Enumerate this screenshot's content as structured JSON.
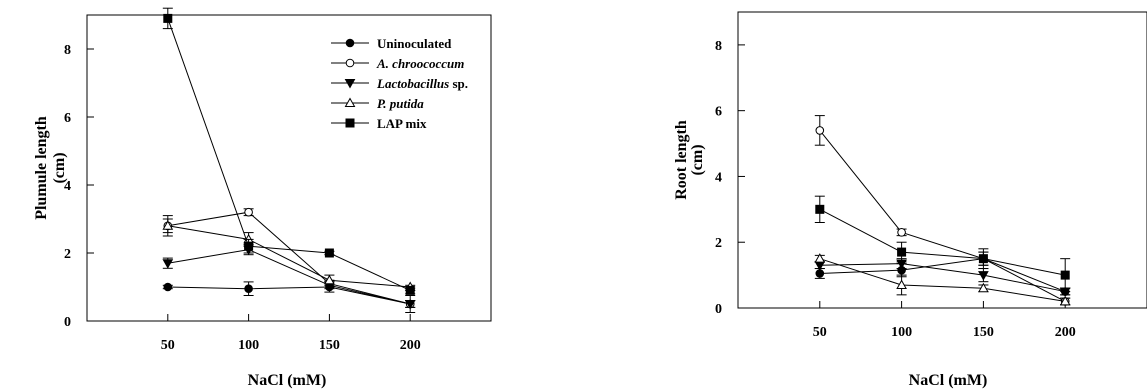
{
  "chart_data": [
    {
      "type": "line",
      "title": "",
      "xlabel": "NaCl (mM)",
      "ylabel": "Plumule length",
      "ylabel_unit": "(cm)",
      "x": [
        50,
        100,
        150,
        200
      ],
      "xlim": [
        0,
        250
      ],
      "ylim": [
        0,
        9
      ],
      "x_ticks": [
        50,
        100,
        150,
        200
      ],
      "y_ticks": [
        0,
        2,
        4,
        6,
        8
      ],
      "grid": false,
      "legend_position": "top-right",
      "series": [
        {
          "name": "Uninoculated",
          "legend_parts": [
            {
              "text": "Uninoculated",
              "italic": false
            }
          ],
          "marker": "filled-circle",
          "values": [
            1.0,
            0.95,
            1.0,
            0.5
          ],
          "errors": [
            0.05,
            0.2,
            0.15,
            0.25
          ]
        },
        {
          "name": "A. chroococcum",
          "legend_parts": [
            {
              "text": "A. chroococcum",
              "italic": true
            }
          ],
          "marker": "open-circle",
          "values": [
            2.8,
            3.2,
            1.1,
            0.5
          ],
          "errors": [
            0.2,
            0.1,
            0.1,
            0.1
          ]
        },
        {
          "name": "Lactobacillus sp.",
          "legend_parts": [
            {
              "text": "Lactobacillus",
              "italic": true
            },
            {
              "text": " sp.",
              "italic": false
            }
          ],
          "marker": "filled-triangle-down",
          "values": [
            1.7,
            2.1,
            1.05,
            0.5
          ],
          "errors": [
            0.15,
            0.15,
            0.1,
            0.1
          ]
        },
        {
          "name": "P. putida",
          "legend_parts": [
            {
              "text": "P. putida",
              "italic": true
            }
          ],
          "marker": "open-triangle-up",
          "values": [
            2.8,
            2.4,
            1.2,
            1.0
          ],
          "errors": [
            0.3,
            0.2,
            0.15,
            0.05
          ]
        },
        {
          "name": "LAP mix",
          "legend_parts": [
            {
              "text": "LAP mix",
              "italic": false
            }
          ],
          "marker": "filled-square",
          "values": [
            8.9,
            2.2,
            2.0,
            0.9
          ],
          "errors": [
            0.3,
            0.2,
            0.05,
            0.1
          ]
        }
      ]
    },
    {
      "type": "line",
      "title": "",
      "xlabel": "NaCl (mM)",
      "ylabel": "Root length",
      "ylabel_unit": "(cm)",
      "x": [
        50,
        100,
        150,
        200
      ],
      "xlim": [
        0,
        250
      ],
      "ylim": [
        0,
        9
      ],
      "x_ticks": [
        50,
        100,
        150,
        200
      ],
      "y_ticks": [
        0,
        2,
        4,
        6,
        8
      ],
      "grid": false,
      "legend_position": "none",
      "series": [
        {
          "marker": "filled-circle",
          "values": [
            1.05,
            1.15,
            1.5,
            0.5
          ],
          "errors": [
            0.15,
            0.2,
            0.2,
            0.1
          ]
        },
        {
          "marker": "open-circle",
          "values": [
            5.4,
            2.3,
            1.5,
            0.2
          ],
          "errors": [
            0.45,
            0.1,
            0.2,
            0.1
          ]
        },
        {
          "marker": "filled-triangle-down",
          "values": [
            1.3,
            1.35,
            1.0,
            0.5
          ],
          "errors": [
            0.1,
            0.15,
            0.2,
            0.1
          ]
        },
        {
          "marker": "open-triangle-up",
          "values": [
            1.5,
            0.7,
            0.6,
            0.2
          ],
          "errors": [
            0.1,
            0.3,
            0.1,
            0.1
          ]
        },
        {
          "marker": "filled-square",
          "values": [
            3.0,
            1.7,
            1.5,
            1.0
          ],
          "errors": [
            0.4,
            0.3,
            0.3,
            0.5
          ]
        }
      ]
    }
  ]
}
